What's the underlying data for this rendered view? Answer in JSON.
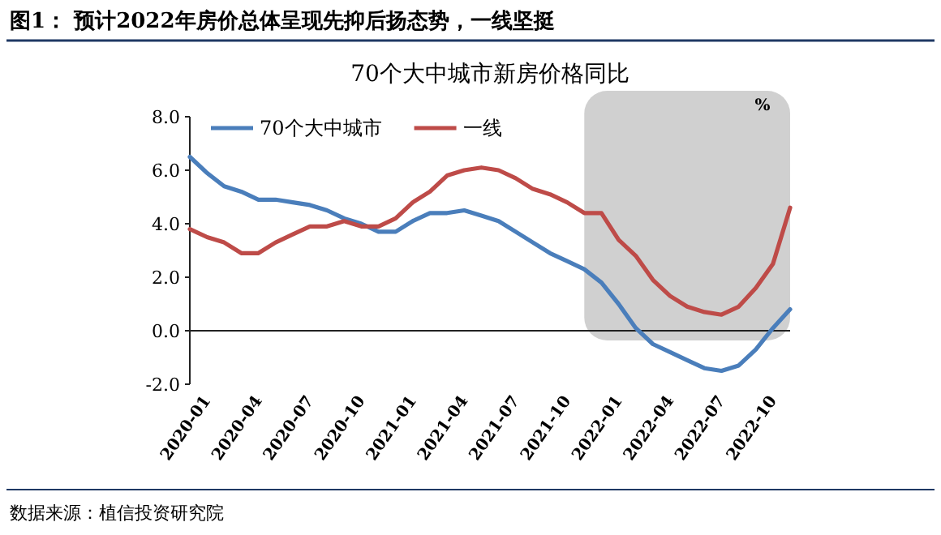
{
  "chart_data": {
    "type": "line",
    "title": "图1：  预计2022年房价总体呈现先抑后扬态势，一线坚挺",
    "subtitle": "70个大中城市新房价格同比",
    "x": [
      "2020-01",
      "2020-02",
      "2020-03",
      "2020-04",
      "2020-05",
      "2020-06",
      "2020-07",
      "2020-08",
      "2020-09",
      "2020-10",
      "2020-11",
      "2020-12",
      "2021-01",
      "2021-02",
      "2021-03",
      "2021-04",
      "2021-05",
      "2021-06",
      "2021-07",
      "2021-08",
      "2021-09",
      "2021-10",
      "2021-11",
      "2021-12",
      "2022-01",
      "2022-02",
      "2022-03",
      "2022-04",
      "2022-05",
      "2022-06",
      "2022-07",
      "2022-08",
      "2022-09",
      "2022-10",
      "2022-11",
      "2022-12"
    ],
    "series": [
      {
        "name": "70个大中城市",
        "color": "#4a7ebb",
        "values": [
          6.5,
          5.9,
          5.4,
          5.2,
          4.9,
          4.9,
          4.8,
          4.7,
          4.5,
          4.2,
          4.0,
          3.7,
          3.7,
          4.1,
          4.4,
          4.4,
          4.5,
          4.3,
          4.1,
          3.7,
          3.3,
          2.9,
          2.6,
          2.3,
          1.8,
          1.0,
          0.1,
          -0.5,
          -0.8,
          -1.1,
          -1.4,
          -1.5,
          -1.3,
          -0.7,
          0.1,
          0.8
        ]
      },
      {
        "name": "一线",
        "color": "#be4b48",
        "values": [
          3.8,
          3.5,
          3.3,
          2.9,
          2.9,
          3.3,
          3.6,
          3.9,
          3.9,
          4.1,
          3.9,
          3.9,
          4.2,
          4.8,
          5.2,
          5.8,
          6.0,
          6.1,
          6.0,
          5.7,
          5.3,
          5.1,
          4.8,
          4.4,
          4.4,
          3.4,
          2.8,
          1.9,
          1.3,
          0.9,
          0.7,
          0.6,
          0.9,
          1.6,
          2.5,
          4.6
        ]
      }
    ],
    "xlim": [
      "2020-01",
      "2022-12"
    ],
    "xticks": [
      "2020-01",
      "2020-04",
      "2020-07",
      "2020-10",
      "2021-01",
      "2021-04",
      "2021-07",
      "2021-10",
      "2022-01",
      "2022-04",
      "2022-07",
      "2022-10"
    ],
    "ylim": [
      -2,
      8
    ],
    "yticks": [
      {
        "value": -2,
        "label": "-2.0"
      },
      {
        "value": 0,
        "label": "0.0"
      },
      {
        "value": 2,
        "label": "2.0"
      },
      {
        "value": 4,
        "label": "4.0"
      },
      {
        "value": 6,
        "label": "6.0"
      },
      {
        "value": 8,
        "label": "8.0"
      }
    ],
    "bands": [
      {
        "axis": "x",
        "from": "2021-12",
        "to": "2022-12",
        "color": "#d0d0d0"
      }
    ],
    "annotations": [
      "%",
      "数据来源：植信投资研究院"
    ],
    "legend": "top",
    "marker": "none",
    "line_style": "solid"
  }
}
